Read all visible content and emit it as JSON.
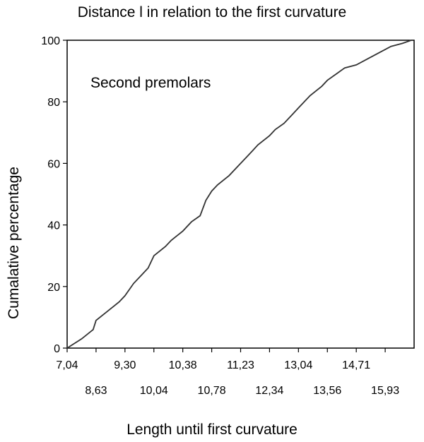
{
  "chart_data": {
    "type": "line",
    "title": "Distance l in relation to the first curvature",
    "xlabel": "Length until first curvature",
    "ylabel": "Cumalative percentage",
    "annotation": "Second  premolars",
    "ylim": [
      0,
      100
    ],
    "yticks": [
      0,
      20,
      40,
      60,
      80,
      100
    ],
    "xtick_labels_row1": [
      "7,04",
      "9,30",
      "10,38",
      "11,23",
      "13,04",
      "14,71"
    ],
    "xtick_labels_row2": [
      "8,63",
      "10,04",
      "10,78",
      "12,34",
      "13,56",
      "15,93"
    ],
    "x_category_count": 12,
    "grid": false,
    "series": [
      {
        "x": [
          0,
          0.5,
          0.9,
          1.0,
          1.4,
          1.8,
          2.0,
          2.3,
          2.6,
          2.8,
          3.0,
          3.4,
          3.6,
          4.0,
          4.3,
          4.6,
          4.8,
          5.0,
          5.2,
          5.6,
          6.0,
          6.2,
          6.4,
          6.6,
          7.0,
          7.2,
          7.5,
          7.8,
          8.0,
          8.4,
          8.8,
          9.0,
          9.3,
          9.6,
          10.0,
          10.4,
          10.8,
          11.2,
          11.6,
          11.9
        ],
        "y": [
          0,
          3,
          6,
          9,
          12,
          15,
          17,
          21,
          24,
          26,
          30,
          33,
          35,
          38,
          41,
          43,
          48,
          51,
          53,
          56,
          60,
          62,
          64,
          66,
          69,
          71,
          73,
          76,
          78,
          82,
          85,
          87,
          89,
          91,
          92,
          94,
          96,
          98,
          99,
          100
        ]
      }
    ]
  }
}
